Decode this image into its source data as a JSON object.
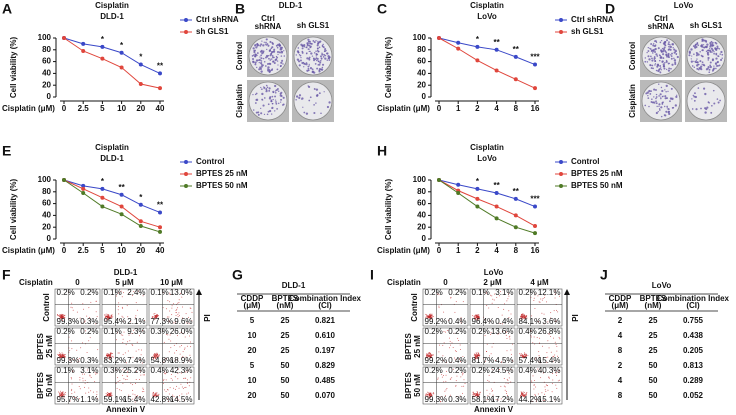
{
  "chart_data": [
    {
      "type": "line",
      "panel": "A",
      "title": "Cisplatin",
      "subtitle": "DLD-1",
      "ylabel": "Cell viability (%)",
      "xlabel": "Cisplatin (μM)",
      "categories": [
        "0",
        "2.5",
        "5",
        "10",
        "20",
        "40"
      ],
      "ylim": [
        0,
        100
      ],
      "yticks": [
        0,
        20,
        40,
        60,
        80,
        100
      ],
      "legend": "upper right",
      "series": [
        {
          "name": "Ctrl shRNA",
          "color": "#3a48c8",
          "values": [
            100,
            90,
            85,
            75,
            55,
            40
          ]
        },
        {
          "name": "sh GLS1",
          "color": "#e0463c",
          "values": [
            100,
            78,
            65,
            50,
            22,
            15
          ]
        }
      ],
      "significance": [
        null,
        null,
        "*",
        "*",
        "*",
        "**"
      ]
    },
    {
      "type": "line",
      "panel": "C",
      "title": "Cisplatin",
      "subtitle": "LoVo",
      "ylabel": "Cell viability (%)",
      "xlabel": "Cisplatin (μM)",
      "categories": [
        "0",
        "1",
        "2",
        "4",
        "8",
        "16"
      ],
      "ylim": [
        0,
        100
      ],
      "yticks": [
        0,
        20,
        40,
        60,
        80,
        100
      ],
      "legend": "upper right",
      "series": [
        {
          "name": "Ctrl shRNA",
          "color": "#3a48c8",
          "values": [
            100,
            92,
            85,
            80,
            68,
            55
          ]
        },
        {
          "name": "sh GLS1",
          "color": "#e0463c",
          "values": [
            100,
            82,
            62,
            45,
            30,
            15
          ]
        }
      ],
      "significance": [
        null,
        null,
        "*",
        "**",
        "**",
        "***"
      ]
    },
    {
      "type": "line",
      "panel": "E",
      "title": "Cisplatin",
      "subtitle": "DLD-1",
      "ylabel": "Cell viability (%)",
      "xlabel": "Cisplatin (μM)",
      "categories": [
        "0",
        "2.5",
        "5",
        "10",
        "20",
        "40"
      ],
      "ylim": [
        0,
        100
      ],
      "yticks": [
        0,
        20,
        40,
        60,
        80,
        100
      ],
      "legend": "upper right",
      "series": [
        {
          "name": "Control",
          "color": "#3a48c8",
          "values": [
            100,
            90,
            85,
            75,
            58,
            45
          ]
        },
        {
          "name": "BPTES 25 nM",
          "color": "#e0463c",
          "values": [
            100,
            85,
            70,
            55,
            30,
            20
          ]
        },
        {
          "name": "BPTES 50 nM",
          "color": "#4f7a26",
          "values": [
            100,
            78,
            55,
            42,
            22,
            12
          ]
        }
      ],
      "significance": [
        null,
        null,
        "*",
        "**",
        "*",
        "**"
      ]
    },
    {
      "type": "line",
      "panel": "H",
      "title": "Cisplatin",
      "subtitle": "LoVo",
      "ylabel": "Cell viability (%)",
      "xlabel": "Cisplatin (μM)",
      "categories": [
        "0",
        "1",
        "2",
        "4",
        "8",
        "16"
      ],
      "ylim": [
        0,
        100
      ],
      "yticks": [
        0,
        20,
        40,
        60,
        80,
        100
      ],
      "legend": "upper right",
      "series": [
        {
          "name": "Control",
          "color": "#3a48c8",
          "values": [
            100,
            92,
            85,
            78,
            68,
            55
          ]
        },
        {
          "name": "BPTES 25 nM",
          "color": "#e0463c",
          "values": [
            100,
            82,
            68,
            55,
            40,
            22
          ]
        },
        {
          "name": "BPTES 50 nM",
          "color": "#4f7a26",
          "values": [
            100,
            78,
            55,
            35,
            20,
            10
          ]
        }
      ],
      "significance": [
        null,
        null,
        "*",
        "**",
        "**",
        "***"
      ]
    }
  ],
  "colony_panels": [
    {
      "panel": "B",
      "title": "DLD-1",
      "columns": [
        [
          "Ctrl",
          "shRNA"
        ],
        [
          "sh GLS1"
        ]
      ],
      "rows": [
        "Control",
        "Cisplatin"
      ]
    },
    {
      "panel": "D",
      "title": "LoVo",
      "columns": [
        [
          "Ctrl",
          "shRNA"
        ],
        [
          "sh GLS1"
        ]
      ],
      "rows": [
        "Control",
        "Cisplatin"
      ]
    }
  ],
  "flow_panels": [
    {
      "panel": "F",
      "title": "DLD-1",
      "treatment": "Cisplatin",
      "columns": [
        "0",
        "5 μM",
        "10 μM"
      ],
      "rows": [
        [
          "Control"
        ],
        [
          "BPTES",
          "25 nM"
        ],
        [
          "BPTES",
          "50 nM"
        ]
      ],
      "x_axis": "Annexin V",
      "y_axis": "PI",
      "quadrants": [
        [
          [
            "0.2%",
            "0.2%",
            "99.3%",
            "0.3%"
          ],
          [
            "0.1%",
            "2.4%",
            "95.4%",
            "2.1%"
          ],
          [
            "0.1%",
            "13.0%",
            "77.3%",
            "9.6%"
          ]
        ],
        [
          [
            "0.2%",
            "0.2%",
            "99.3%",
            "0.3%"
          ],
          [
            "0.1%",
            "9.3%",
            "83.2%",
            "7.4%"
          ],
          [
            "0.3%",
            "26.0%",
            "54.8%",
            "18.9%"
          ]
        ],
        [
          [
            "0.1%",
            "3.1%",
            "95.7%",
            "1.1%"
          ],
          [
            "0.3%",
            "25.2%",
            "59.1%",
            "15.4%"
          ],
          [
            "0.4%",
            "42.3%",
            "42.8%",
            "14.5%"
          ]
        ]
      ]
    },
    {
      "panel": "I",
      "title": "LoVo",
      "treatment": "Cisplatin",
      "columns": [
        "0",
        "2 μM",
        "4 μM"
      ],
      "rows": [
        [
          "Control"
        ],
        [
          "BPTES",
          "25 nM"
        ],
        [
          "BPTES",
          "50 nM"
        ]
      ],
      "x_axis": "Annexin V",
      "y_axis": "PI",
      "quadrants": [
        [
          [
            "0.2%",
            "0.2%",
            "99.2%",
            "0.4%"
          ],
          [
            "0.1%",
            "3.1%",
            "96.4%",
            "0.4%"
          ],
          [
            "0.2%",
            "12.1%",
            "84.1%",
            "3.6%"
          ]
        ],
        [
          [
            "0.2%",
            "0.2%",
            "99.2%",
            "0.4%"
          ],
          [
            "0.2%",
            "13.6%",
            "81.7%",
            "4.5%"
          ],
          [
            "0.4%",
            "26.8%",
            "57.4%",
            "15.4%"
          ]
        ],
        [
          [
            "0.2%",
            "0.2%",
            "99.3%",
            "0.3%"
          ],
          [
            "0.2%",
            "24.5%",
            "58.1%",
            "17.2%"
          ],
          [
            "0.4%",
            "40.3%",
            "44.2%",
            "15.1%"
          ]
        ]
      ]
    }
  ],
  "tables": [
    {
      "panel": "G",
      "title": "DLD-1",
      "header": [
        [
          "CDDP",
          "(μM)"
        ],
        [
          "BPTES",
          "(nM)"
        ],
        [
          "Combination Index",
          "(CI)"
        ]
      ],
      "rows": [
        [
          "5",
          "25",
          "0.821"
        ],
        [
          "10",
          "25",
          "0.610"
        ],
        [
          "20",
          "25",
          "0.197"
        ],
        [
          "5",
          "50",
          "0.829"
        ],
        [
          "10",
          "50",
          "0.485"
        ],
        [
          "20",
          "50",
          "0.070"
        ]
      ]
    },
    {
      "panel": "J",
      "title": "LoVo",
      "header": [
        [
          "CDDP",
          "(μM)"
        ],
        [
          "BPTES",
          "(nM)"
        ],
        [
          "Combination Index",
          "(CI)"
        ]
      ],
      "rows": [
        [
          "2",
          "25",
          "0.755"
        ],
        [
          "4",
          "25",
          "0.438"
        ],
        [
          "8",
          "25",
          "0.205"
        ],
        [
          "2",
          "50",
          "0.813"
        ],
        [
          "4",
          "50",
          "0.289"
        ],
        [
          "8",
          "50",
          "0.052"
        ]
      ]
    }
  ]
}
